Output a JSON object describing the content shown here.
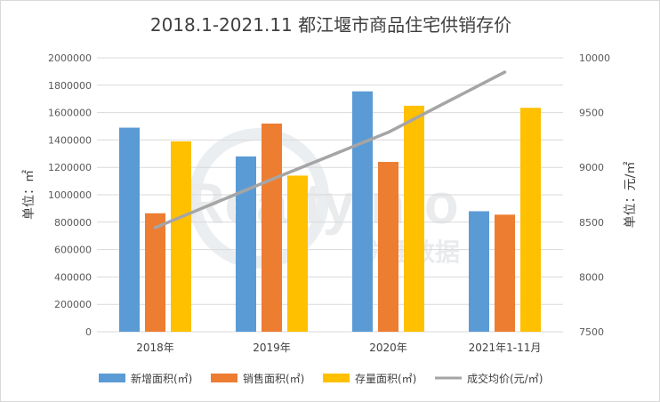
{
  "chart_data": {
    "type": "bar+line",
    "title": "2018.1-2021.11 都江堰市商品住宅供销存价",
    "categories": [
      "2018年",
      "2019年",
      "2020年",
      "2021年1-11月"
    ],
    "series": [
      {
        "name": "新增面积(㎡)",
        "type": "bar",
        "axis": "left",
        "color": "#5b9bd5",
        "values": [
          1490000,
          1280000,
          1755000,
          880000
        ]
      },
      {
        "name": "销售面积(㎡)",
        "type": "bar",
        "axis": "left",
        "color": "#ed7d31",
        "values": [
          865000,
          1520000,
          1240000,
          855000
        ]
      },
      {
        "name": "存量面积(㎡)",
        "type": "bar",
        "axis": "left",
        "color": "#ffc000",
        "values": [
          1390000,
          1140000,
          1650000,
          1635000
        ]
      },
      {
        "name": "成交均价(元/㎡)",
        "type": "line",
        "axis": "right",
        "color": "#a5a5a5",
        "values": [
          8450,
          8890,
          9320,
          9870
        ]
      }
    ],
    "y_left": {
      "label": "单位：㎡",
      "min": 0,
      "max": 2000000,
      "ticks": [
        0,
        200000,
        400000,
        600000,
        800000,
        1000000,
        1200000,
        1400000,
        1600000,
        1800000,
        2000000
      ]
    },
    "y_right": {
      "label": "单位：元/㎡",
      "min": 7500,
      "max": 10000,
      "ticks": [
        7500,
        8000,
        8500,
        9000,
        9500,
        10000
      ]
    },
    "grid": "horizontal",
    "legend": "bottom",
    "watermark": "RealtyInfo 锐理数据"
  }
}
